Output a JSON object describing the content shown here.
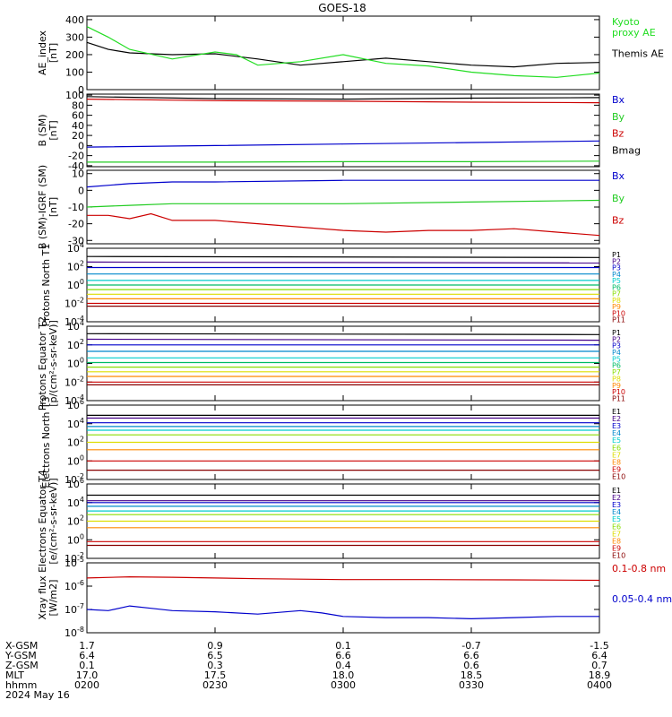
{
  "title": "GOES-18",
  "chart_data": [
    {
      "type": "line",
      "ylabel": "AE_index [nT]",
      "y_ticks": [
        "0",
        "100",
        "200",
        "300",
        "400"
      ],
      "ylim": [
        0,
        420
      ],
      "scale": "linear",
      "legend": [
        {
          "label": "Kyoto\nproxy AE",
          "color": "#22dd22"
        },
        {
          "label": "Themis AE",
          "color": "#000000"
        }
      ],
      "series": [
        {
          "color": "#000000",
          "x": [
            0,
            5,
            10,
            20,
            30,
            40,
            50,
            60,
            70,
            80,
            90,
            100,
            110,
            120
          ],
          "values": [
            270,
            230,
            210,
            200,
            205,
            175,
            140,
            160,
            180,
            160,
            140,
            130,
            150,
            155
          ]
        },
        {
          "color": "#22dd22",
          "x": [
            0,
            5,
            10,
            20,
            30,
            35,
            40,
            50,
            60,
            70,
            80,
            90,
            100,
            110,
            120
          ],
          "values": [
            360,
            300,
            230,
            175,
            215,
            200,
            140,
            160,
            200,
            150,
            135,
            100,
            80,
            70,
            95
          ]
        }
      ]
    },
    {
      "type": "line",
      "ylabel": "B (SM) [nT]",
      "y_ticks": [
        "-40",
        "-20",
        "0",
        "20",
        "40",
        "60",
        "80",
        "100"
      ],
      "ylim": [
        -42,
        102
      ],
      "scale": "linear",
      "legend": [
        {
          "label": "Bx",
          "color": "#0000cc"
        },
        {
          "label": "By",
          "color": "#22cc22"
        },
        {
          "label": "Bz",
          "color": "#cc0000"
        },
        {
          "label": "Bmag",
          "color": "#000000"
        }
      ],
      "series": [
        {
          "color": "#000000",
          "x": [
            0,
            30,
            60,
            90,
            120
          ],
          "values": [
            97,
            93,
            92,
            94,
            95
          ]
        },
        {
          "color": "#cc0000",
          "x": [
            0,
            30,
            60,
            90,
            120
          ],
          "values": [
            92,
            89,
            88,
            86,
            85
          ]
        },
        {
          "color": "#0000cc",
          "x": [
            0,
            30,
            60,
            90,
            120
          ],
          "values": [
            -3,
            0,
            3,
            6,
            9
          ]
        },
        {
          "color": "#22cc22",
          "x": [
            0,
            30,
            60,
            90,
            120
          ],
          "values": [
            -33,
            -33,
            -32,
            -32,
            -31
          ]
        }
      ]
    },
    {
      "type": "line",
      "ylabel": "B (SM)-IGRF (SM) [nT]",
      "y_ticks": [
        "-30",
        "-20",
        "-10",
        "0",
        "10"
      ],
      "ylim": [
        -32,
        12
      ],
      "scale": "linear",
      "legend": [
        {
          "label": "Bx",
          "color": "#0000cc"
        },
        {
          "label": "By",
          "color": "#22cc22"
        },
        {
          "label": "Bz",
          "color": "#cc0000"
        }
      ],
      "series": [
        {
          "color": "#0000cc",
          "x": [
            0,
            10,
            20,
            30,
            60,
            90,
            120
          ],
          "values": [
            2,
            4,
            5,
            5,
            6,
            6,
            6
          ]
        },
        {
          "color": "#22cc22",
          "x": [
            0,
            10,
            20,
            30,
            60,
            90,
            120
          ],
          "values": [
            -10,
            -9,
            -8,
            -8,
            -8,
            -7,
            -6
          ]
        },
        {
          "color": "#cc0000",
          "x": [
            0,
            5,
            10,
            15,
            20,
            30,
            40,
            50,
            60,
            70,
            80,
            90,
            100,
            110,
            120
          ],
          "values": [
            -15,
            -15,
            -17,
            -14,
            -18,
            -18,
            -20,
            -22,
            -24,
            -25,
            -24,
            -24,
            -23,
            -25,
            -27
          ]
        }
      ]
    },
    {
      "type": "line",
      "ylabel": "Protons North T1",
      "y_ticks": [
        "10^-4",
        "10^-2",
        "10^0",
        "10^2",
        "10^4"
      ],
      "ylim": [
        -4,
        4
      ],
      "scale": "log",
      "legend": [
        {
          "label": "P1",
          "color": "#000000"
        },
        {
          "label": "P2",
          "color": "#440088"
        },
        {
          "label": "P3",
          "color": "#0000cc"
        },
        {
          "label": "P4",
          "color": "#0088cc"
        },
        {
          "label": "P5",
          "color": "#00cccc"
        },
        {
          "label": "P6",
          "color": "#00bb66"
        },
        {
          "label": "P7",
          "color": "#88dd00"
        },
        {
          "label": "P8",
          "color": "#dddd00"
        },
        {
          "label": "P9",
          "color": "#ff8800"
        },
        {
          "label": "P10",
          "color": "#cc0000"
        },
        {
          "label": "P11",
          "color": "#880000"
        }
      ],
      "series": [
        {
          "color": "#000000",
          "x": [
            0,
            120
          ],
          "values": [
            3.1,
            3.0
          ]
        },
        {
          "color": "#440088",
          "x": [
            0,
            120
          ],
          "values": [
            2.5,
            2.4
          ]
        },
        {
          "color": "#0000cc",
          "x": [
            0,
            120
          ],
          "values": [
            1.9,
            1.9
          ]
        },
        {
          "color": "#0088cc",
          "x": [
            0,
            120
          ],
          "values": [
            1.2,
            1.2
          ]
        },
        {
          "color": "#00cccc",
          "x": [
            0,
            120
          ],
          "values": [
            0.5,
            0.5
          ]
        },
        {
          "color": "#00bb66",
          "x": [
            0,
            120
          ],
          "values": [
            0.0,
            0.0
          ]
        },
        {
          "color": "#88dd00",
          "x": [
            0,
            120
          ],
          "values": [
            -0.5,
            -0.5
          ]
        },
        {
          "color": "#dddd00",
          "x": [
            0,
            120
          ],
          "values": [
            -1.0,
            -1.0
          ]
        },
        {
          "color": "#ff8800",
          "x": [
            0,
            120
          ],
          "values": [
            -1.5,
            -1.5
          ]
        },
        {
          "color": "#cc0000",
          "x": [
            0,
            120
          ],
          "values": [
            -2.0,
            -2.0
          ]
        },
        {
          "color": "#880000",
          "x": [
            0,
            120
          ],
          "values": [
            -2.3,
            -2.3
          ]
        }
      ]
    },
    {
      "type": "line",
      "ylabel": "Protons Equator T2 [p/(cm²-s-sr-keV)]",
      "y_ticks": [
        "10^-4",
        "10^-2",
        "10^0",
        "10^2",
        "10^4"
      ],
      "ylim": [
        -4,
        4
      ],
      "scale": "log",
      "legend": [
        {
          "label": "P1",
          "color": "#000000"
        },
        {
          "label": "P2",
          "color": "#440088"
        },
        {
          "label": "P3",
          "color": "#0000cc"
        },
        {
          "label": "P4",
          "color": "#0088cc"
        },
        {
          "label": "P5",
          "color": "#00cccc"
        },
        {
          "label": "P6",
          "color": "#00bb66"
        },
        {
          "label": "P7",
          "color": "#88dd00"
        },
        {
          "label": "P8",
          "color": "#dddd00"
        },
        {
          "label": "P9",
          "color": "#ff8800"
        },
        {
          "label": "P10",
          "color": "#cc0000"
        },
        {
          "label": "P11",
          "color": "#880000"
        }
      ],
      "series": [
        {
          "color": "#000000",
          "x": [
            0,
            120
          ],
          "values": [
            3.2,
            3.1
          ]
        },
        {
          "color": "#440088",
          "x": [
            0,
            120
          ],
          "values": [
            2.6,
            2.5
          ]
        },
        {
          "color": "#0000cc",
          "x": [
            0,
            120
          ],
          "values": [
            2.0,
            2.0
          ]
        },
        {
          "color": "#0088cc",
          "x": [
            0,
            120
          ],
          "values": [
            1.3,
            1.3
          ]
        },
        {
          "color": "#00cccc",
          "x": [
            0,
            120
          ],
          "values": [
            0.6,
            0.6
          ]
        },
        {
          "color": "#00bb66",
          "x": [
            0,
            120
          ],
          "values": [
            0.1,
            0.1
          ]
        },
        {
          "color": "#88dd00",
          "x": [
            0,
            120
          ],
          "values": [
            -0.4,
            -0.4
          ]
        },
        {
          "color": "#dddd00",
          "x": [
            0,
            120
          ],
          "values": [
            -0.9,
            -0.9
          ]
        },
        {
          "color": "#ff8800",
          "x": [
            0,
            120
          ],
          "values": [
            -1.4,
            -1.4
          ]
        },
        {
          "color": "#cc0000",
          "x": [
            0,
            120
          ],
          "values": [
            -2.0,
            -2.0
          ]
        },
        {
          "color": "#880000",
          "x": [
            0,
            120
          ],
          "values": [
            -2.3,
            -2.3
          ]
        }
      ]
    },
    {
      "type": "line",
      "ylabel": "Electrons North T3",
      "y_ticks": [
        "10^-2",
        "10^0",
        "10^2",
        "10^4",
        "10^6"
      ],
      "ylim": [
        -2,
        6
      ],
      "scale": "log",
      "legend": [
        {
          "label": "E1",
          "color": "#000000"
        },
        {
          "label": "E2",
          "color": "#440088"
        },
        {
          "label": "E3",
          "color": "#0000cc"
        },
        {
          "label": "E4",
          "color": "#0088cc"
        },
        {
          "label": "E5",
          "color": "#00cccc"
        },
        {
          "label": "E6",
          "color": "#88dd00"
        },
        {
          "label": "E7",
          "color": "#dddd00"
        },
        {
          "label": "E8",
          "color": "#ff8800"
        },
        {
          "label": "E9",
          "color": "#cc0000"
        },
        {
          "label": "E10",
          "color": "#880000"
        }
      ],
      "series": [
        {
          "color": "#000000",
          "x": [
            0,
            120
          ],
          "values": [
            4.9,
            4.9
          ]
        },
        {
          "color": "#440088",
          "x": [
            0,
            120
          ],
          "values": [
            4.6,
            4.6
          ]
        },
        {
          "color": "#0000cc",
          "x": [
            0,
            120
          ],
          "values": [
            4.1,
            4.1
          ]
        },
        {
          "color": "#0088cc",
          "x": [
            0,
            120
          ],
          "values": [
            3.7,
            3.7
          ]
        },
        {
          "color": "#00cccc",
          "x": [
            0,
            120
          ],
          "values": [
            3.3,
            3.3
          ]
        },
        {
          "color": "#88dd00",
          "x": [
            0,
            120
          ],
          "values": [
            2.8,
            2.8
          ]
        },
        {
          "color": "#dddd00",
          "x": [
            0,
            120
          ],
          "values": [
            2.0,
            2.0
          ]
        },
        {
          "color": "#ff8800",
          "x": [
            0,
            120
          ],
          "values": [
            1.2,
            1.2
          ]
        },
        {
          "color": "#cc0000",
          "x": [
            0,
            120
          ],
          "values": [
            0.0,
            0.0
          ]
        },
        {
          "color": "#880000",
          "x": [
            0,
            120
          ],
          "values": [
            -1.0,
            -1.0
          ]
        }
      ]
    },
    {
      "type": "line",
      "ylabel": "Electrons Equator T4 [e/(cm²-s-sr-keV)]",
      "y_ticks": [
        "10^-2",
        "10^0",
        "10^2",
        "10^4",
        "10^6"
      ],
      "ylim": [
        -2,
        6
      ],
      "scale": "log",
      "legend": [
        {
          "label": "E1",
          "color": "#000000"
        },
        {
          "label": "E2",
          "color": "#440088"
        },
        {
          "label": "E3",
          "color": "#0000cc"
        },
        {
          "label": "E4",
          "color": "#0088cc"
        },
        {
          "label": "E5",
          "color": "#00cccc"
        },
        {
          "label": "E6",
          "color": "#88dd00"
        },
        {
          "label": "E7",
          "color": "#dddd00"
        },
        {
          "label": "E8",
          "color": "#ff8800"
        },
        {
          "label": "E9",
          "color": "#cc0000"
        },
        {
          "label": "E10",
          "color": "#880000"
        }
      ],
      "series": [
        {
          "color": "#000000",
          "x": [
            0,
            120
          ],
          "values": [
            4.8,
            4.8
          ]
        },
        {
          "color": "#440088",
          "x": [
            0,
            120
          ],
          "values": [
            4.2,
            4.2
          ]
        },
        {
          "color": "#0000cc",
          "x": [
            0,
            120
          ],
          "values": [
            4.0,
            4.0
          ]
        },
        {
          "color": "#0088cc",
          "x": [
            0,
            120
          ],
          "values": [
            3.6,
            3.6
          ]
        },
        {
          "color": "#00cccc",
          "x": [
            0,
            120
          ],
          "values": [
            3.1,
            3.1
          ]
        },
        {
          "color": "#88dd00",
          "x": [
            0,
            120
          ],
          "values": [
            2.7,
            2.7
          ]
        },
        {
          "color": "#dddd00",
          "x": [
            0,
            120
          ],
          "values": [
            2.0,
            2.0
          ]
        },
        {
          "color": "#ff8800",
          "x": [
            0,
            120
          ],
          "values": [
            1.3,
            1.3
          ]
        },
        {
          "color": "#cc0000",
          "x": [
            0,
            120
          ],
          "values": [
            -0.2,
            -0.2
          ]
        },
        {
          "color": "#880000",
          "x": [
            0,
            120
          ],
          "values": [
            -0.6,
            -0.6
          ]
        }
      ]
    },
    {
      "type": "line",
      "ylabel": "Xray flux [W/m2]",
      "y_ticks": [
        "10^-8",
        "10^-7",
        "10^-6",
        "10^-5"
      ],
      "ylim": [
        -8,
        -5
      ],
      "scale": "log",
      "legend": [
        {
          "label": "0.1-0.8 nm",
          "color": "#cc0000"
        },
        {
          "label": "0.05-0.4 nm",
          "color": "#0000cc"
        }
      ],
      "series": [
        {
          "color": "#cc0000",
          "x": [
            0,
            10,
            20,
            40,
            60,
            80,
            100,
            120
          ],
          "values": [
            -5.65,
            -5.6,
            -5.62,
            -5.68,
            -5.72,
            -5.72,
            -5.73,
            -5.75
          ]
        },
        {
          "color": "#0000cc",
          "x": [
            0,
            5,
            10,
            15,
            20,
            30,
            40,
            50,
            55,
            60,
            70,
            80,
            90,
            100,
            110,
            120
          ],
          "values": [
            -7.0,
            -7.05,
            -6.85,
            -6.95,
            -7.05,
            -7.1,
            -7.2,
            -7.05,
            -7.15,
            -7.3,
            -7.35,
            -7.35,
            -7.4,
            -7.35,
            -7.3,
            -7.3
          ]
        }
      ]
    }
  ],
  "x_axis": {
    "rows": [
      {
        "label": "X-GSM",
        "values": [
          "1.7",
          "0.9",
          "0.1",
          "-0.7",
          "-1.5"
        ]
      },
      {
        "label": "Y-GSM",
        "values": [
          "6.4",
          "6.5",
          "6.6",
          "6.6",
          "6.4"
        ]
      },
      {
        "label": "Z-GSM",
        "values": [
          "0.1",
          "0.3",
          "0.4",
          "0.6",
          "0.7"
        ]
      },
      {
        "label": "MLT",
        "values": [
          "17.0",
          "17.5",
          "18.0",
          "18.5",
          "18.9"
        ]
      },
      {
        "label": "hhmm",
        "values": [
          "0200",
          "0230",
          "0300",
          "0330",
          "0400"
        ]
      }
    ],
    "date": "2024 May 16"
  }
}
